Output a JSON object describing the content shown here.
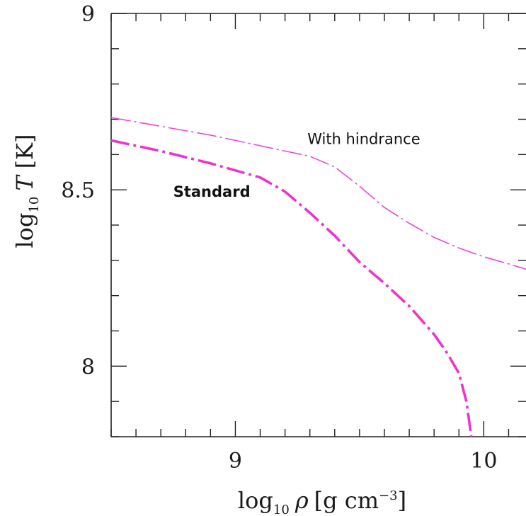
{
  "chart_data": {
    "type": "line",
    "xlabel": {
      "base": "log",
      "sub": "10",
      "var": "ρ",
      "unit_open": "[g  cm",
      "unit_exp": "−3",
      "unit_close": "]"
    },
    "ylabel": {
      "base": "log",
      "sub": "10",
      "var": "T",
      "unit": "[K]"
    },
    "xlim": [
      8.5,
      10.17
    ],
    "ylim": [
      7.8,
      9.0
    ],
    "x_ticks": [
      {
        "value": 9,
        "label": "9"
      },
      {
        "value": 10,
        "label": "10"
      }
    ],
    "y_ticks": [
      {
        "value": 8,
        "label": "8"
      },
      {
        "value": 8.5,
        "label": "8.5"
      },
      {
        "value": 9,
        "label": "9"
      }
    ],
    "x_minor_step": 0.1,
    "y_minor_step": 0.1,
    "grid": false,
    "series": [
      {
        "name": "With hindrance",
        "label_bold": false,
        "label_at": [
          9.29,
          8.63
        ],
        "color": "#ee44dd",
        "style": "thin-dashdot",
        "x": [
          8.5,
          8.7,
          8.9,
          9.1,
          9.3,
          9.4,
          9.5,
          9.6,
          9.7,
          9.8,
          9.9,
          10.0,
          10.1,
          10.17
        ],
        "y": [
          8.705,
          8.68,
          8.655,
          8.625,
          8.595,
          8.565,
          8.51,
          8.45,
          8.405,
          8.365,
          8.335,
          8.31,
          8.29,
          8.275
        ]
      },
      {
        "name": "Standard",
        "label_bold": true,
        "label_at": [
          8.75,
          8.48
        ],
        "color": "#ee33cc",
        "style": "thick-dashdot",
        "x": [
          8.5,
          8.7,
          8.9,
          9.1,
          9.2,
          9.3,
          9.4,
          9.5,
          9.6,
          9.7,
          9.8,
          9.85,
          9.9,
          9.93,
          9.95
        ],
        "y": [
          8.64,
          8.61,
          8.575,
          8.535,
          8.495,
          8.435,
          8.37,
          8.295,
          8.235,
          8.17,
          8.09,
          8.04,
          7.98,
          7.9,
          7.8
        ]
      }
    ]
  }
}
